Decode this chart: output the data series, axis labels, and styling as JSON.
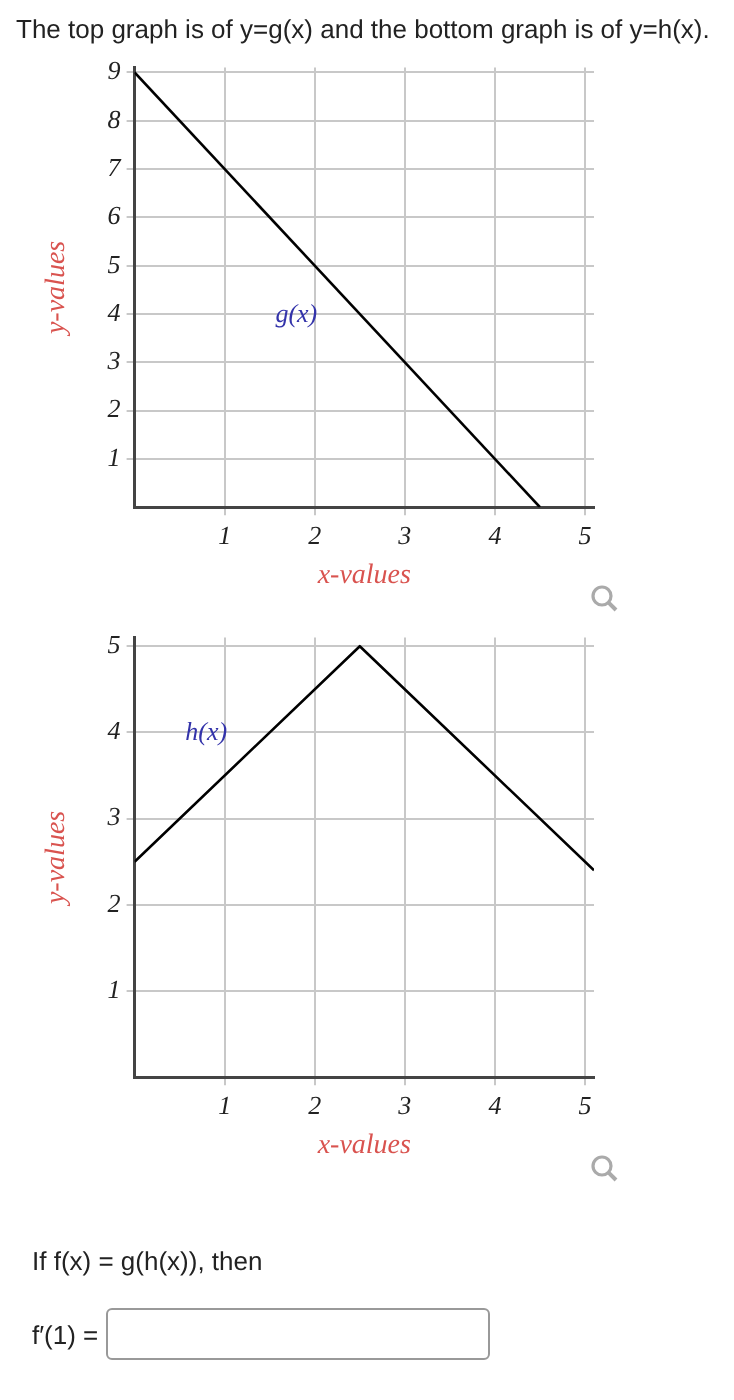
{
  "chart_data": [
    {
      "type": "line",
      "title": "The top graph is of y=g(x) and the bottom graph is of y=h(x).",
      "xlabel": "x-values",
      "ylabel": "y-values",
      "series": [
        {
          "name": "g(x)",
          "color": "#000000",
          "x": [
            0,
            4.5
          ],
          "values": [
            9,
            0
          ]
        }
      ],
      "xlim": [
        0,
        5.1
      ],
      "xticks": [
        1,
        2,
        3,
        4,
        5
      ],
      "ylim": [
        0,
        9.1
      ],
      "yticks": [
        1,
        2,
        3,
        4,
        5,
        6,
        7,
        8,
        9
      ],
      "grid": true,
      "legend": false,
      "marker": "none",
      "line_style": "solid"
    },
    {
      "type": "line",
      "xlabel": "x-values",
      "ylabel": "y-values",
      "series": [
        {
          "name": "h(x)",
          "color": "#000000",
          "x": [
            0,
            2.5,
            5.1
          ],
          "values": [
            2.5,
            5,
            2.4
          ]
        }
      ],
      "annotations": [
        "If f(x) = g(h(x)), then",
        "f′(1) ="
      ],
      "xlim": [
        0,
        5.1
      ],
      "xticks": [
        1,
        2,
        3,
        4,
        5
      ],
      "ylim": [
        0,
        5.1
      ],
      "yticks": [
        1,
        2,
        3,
        4,
        5
      ],
      "grid": true,
      "legend": false,
      "marker": "none",
      "line_style": "solid"
    }
  ]
}
